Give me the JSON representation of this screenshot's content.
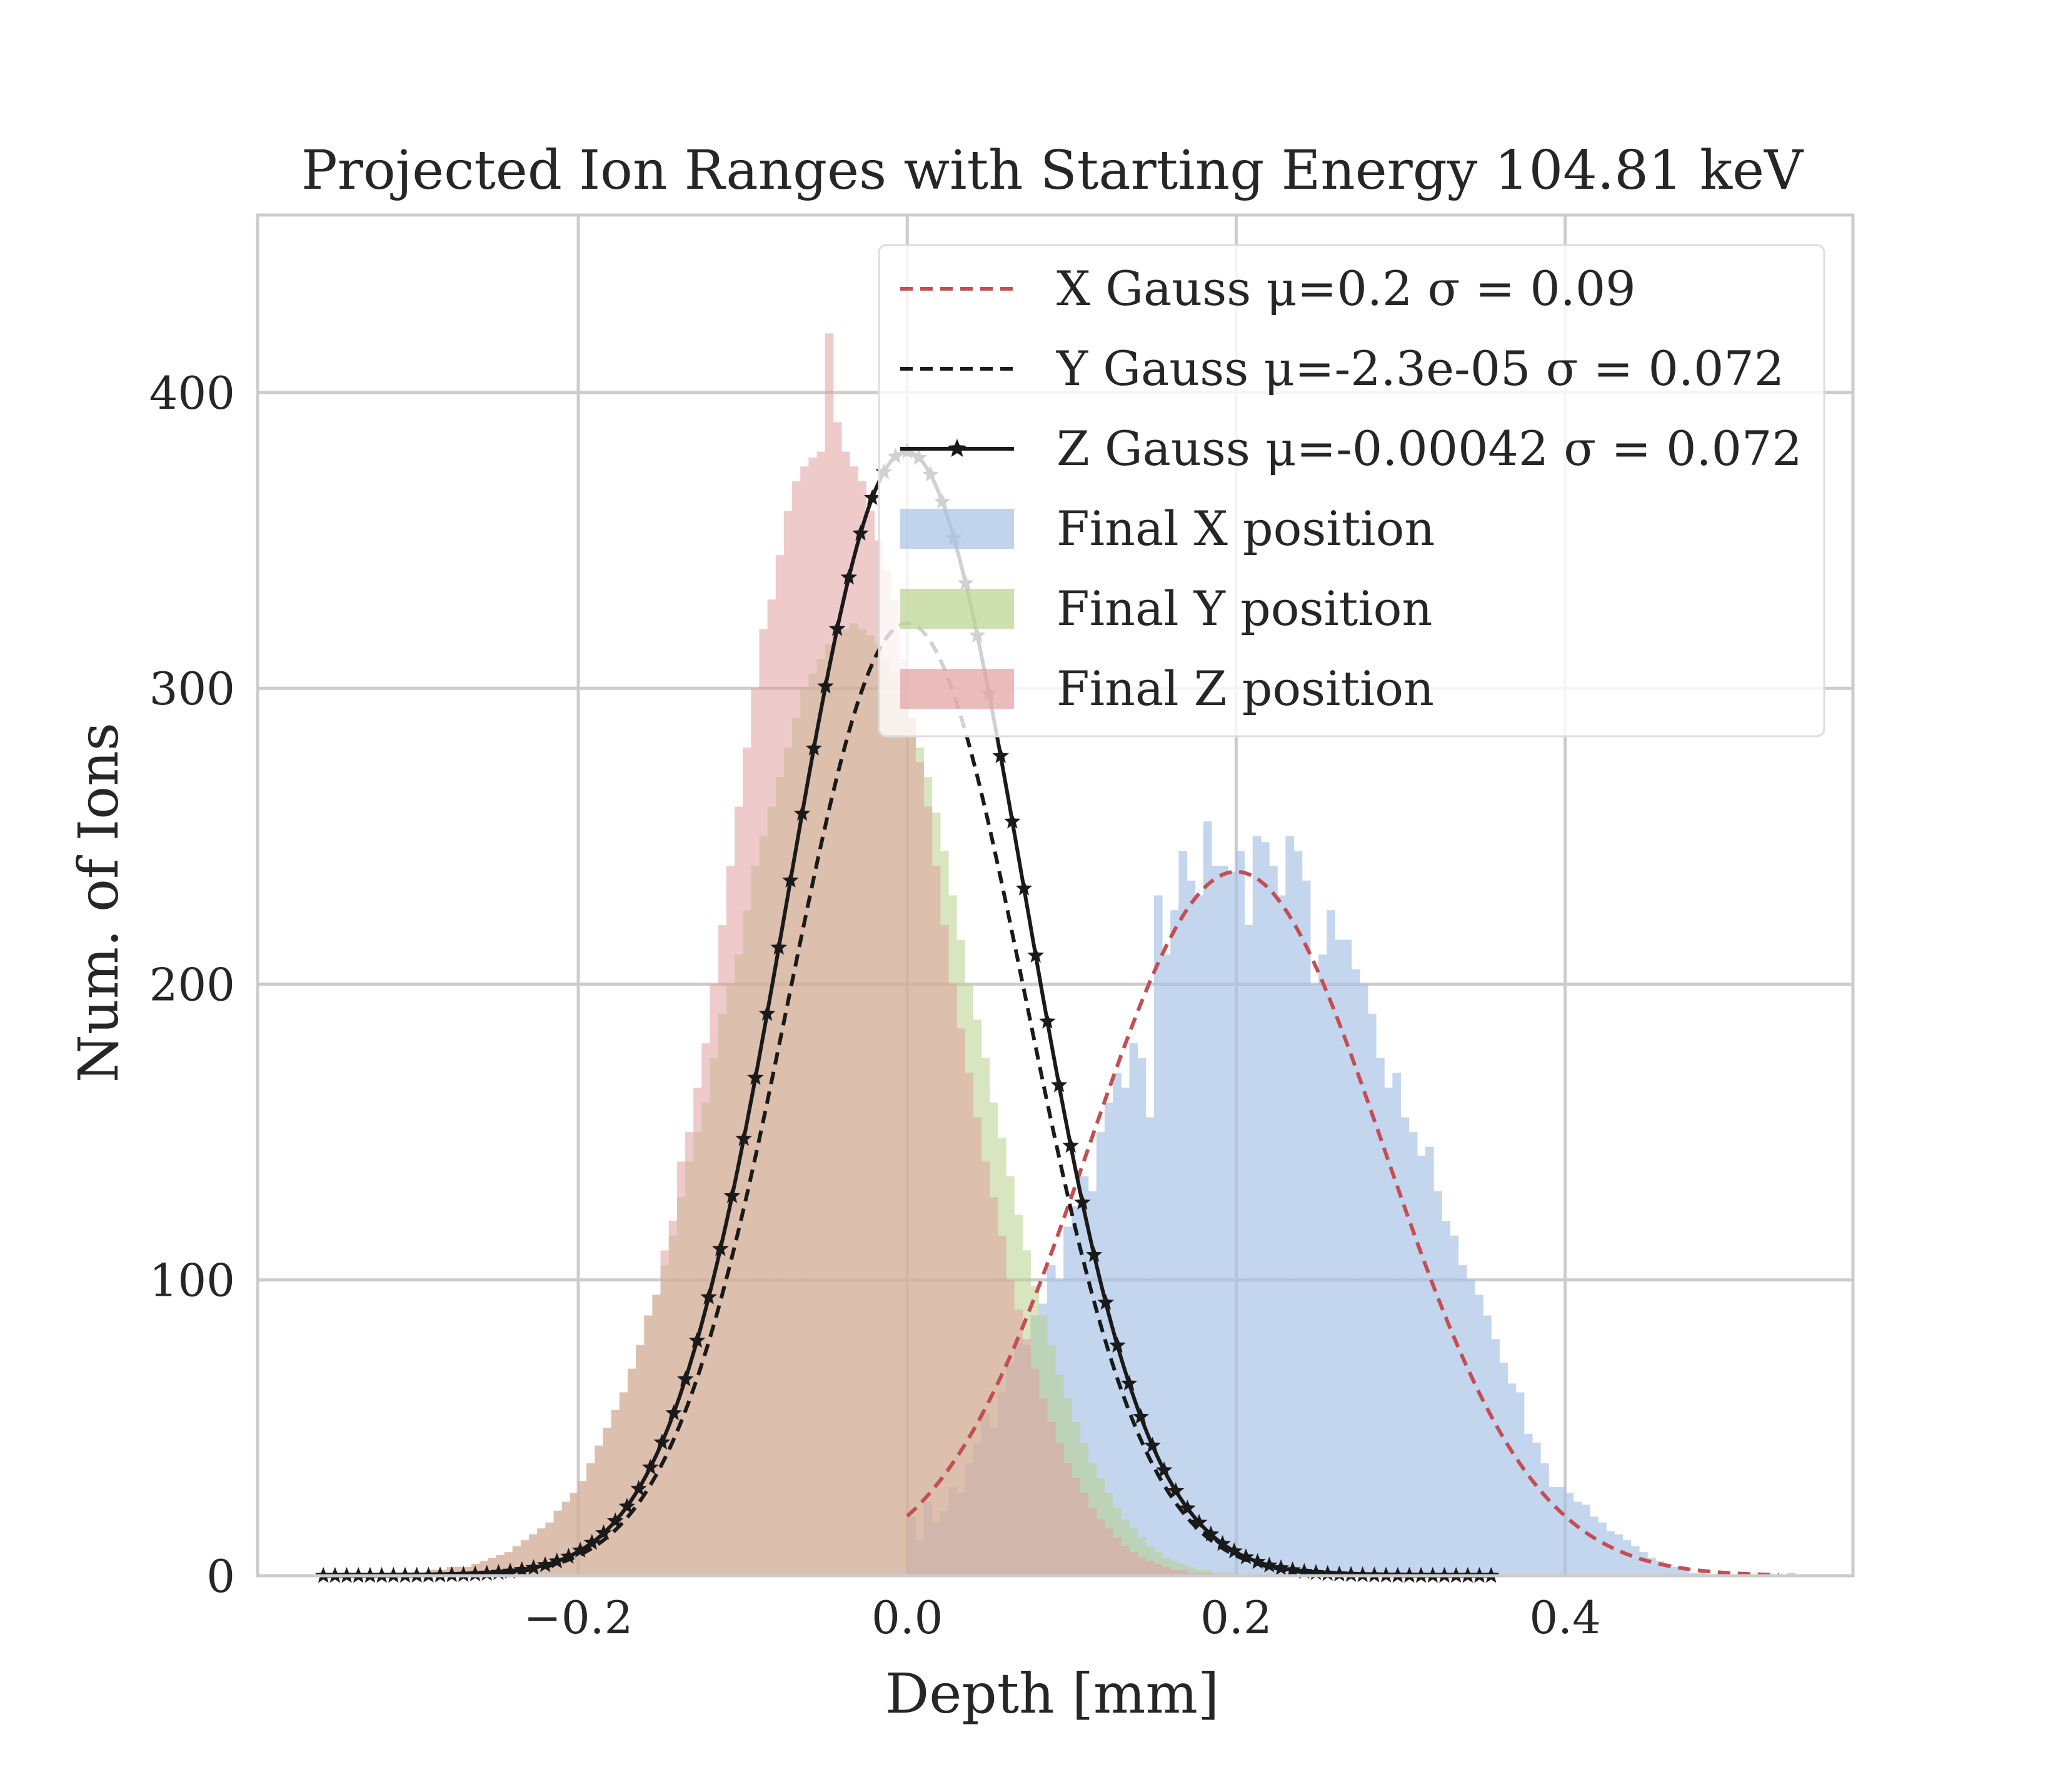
{
  "chart_data": {
    "type": "histogram",
    "title": "Projected Ion Ranges with Starting Energy 104.81 keV",
    "xlabel": "Depth [mm]",
    "ylabel": "Num. of Ions",
    "xlim": [
      -0.395,
      0.575
    ],
    "ylim": [
      0,
      460
    ],
    "x_ticks": [
      -0.2,
      0.0,
      0.2,
      0.4
    ],
    "x_tick_labels": [
      "−0.2",
      "0.0",
      "0.2",
      "0.4"
    ],
    "y_ticks": [
      0,
      100,
      200,
      300,
      400
    ],
    "y_tick_labels": [
      "0",
      "100",
      "200",
      "300",
      "400"
    ],
    "grid": true,
    "legend_position": "top-right",
    "histograms": [
      {
        "name": "Final X position",
        "color": "#a6c0e6",
        "opacity": 0.65,
        "bin_width": 0.005,
        "x_start": 0.0,
        "counts": [
          20,
          12,
          25,
          18,
          22,
          30,
          28,
          38,
          45,
          55,
          50,
          62,
          72,
          80,
          78,
          88,
          92,
          105,
          100,
          118,
          125,
          135,
          130,
          150,
          160,
          170,
          165,
          180,
          175,
          155,
          230,
          210,
          225,
          245,
          235,
          230,
          255,
          240,
          240,
          238,
          245,
          220,
          250,
          248,
          240,
          230,
          250,
          245,
          235,
          200,
          210,
          225,
          215,
          215,
          205,
          200,
          190,
          175,
          165,
          170,
          155,
          150,
          142,
          145,
          130,
          120,
          115,
          105,
          100,
          95,
          88,
          80,
          72,
          65,
          62,
          48,
          45,
          38,
          30,
          30,
          28,
          25,
          24,
          20,
          18,
          15,
          14,
          12,
          10,
          8,
          6,
          5,
          4,
          3,
          2,
          1,
          1,
          0,
          0,
          0,
          0,
          0,
          0,
          0,
          0,
          0,
          0,
          1
        ]
      },
      {
        "name": "Final Y position",
        "color": "#b9d28e",
        "opacity": 0.55,
        "bin_width": 0.005,
        "x_start": -0.36,
        "counts": [
          0,
          0,
          0,
          0,
          0,
          0,
          0,
          0,
          0,
          0,
          1,
          1,
          1,
          1,
          2,
          2,
          3,
          3,
          3,
          4,
          5,
          6,
          7,
          8,
          10,
          12,
          14,
          16,
          18,
          22,
          25,
          28,
          32,
          38,
          44,
          50,
          56,
          62,
          70,
          78,
          88,
          95,
          105,
          115,
          128,
          140,
          150,
          160,
          175,
          190,
          200,
          210,
          225,
          240,
          250,
          260,
          270,
          280,
          290,
          300,
          305,
          310,
          315,
          318,
          320,
          322,
          320,
          318,
          315,
          310,
          305,
          298,
          290,
          280,
          270,
          258,
          245,
          230,
          215,
          200,
          188,
          175,
          160,
          148,
          135,
          122,
          110,
          98,
          88,
          78,
          68,
          60,
          52,
          45,
          38,
          33,
          28,
          23,
          19,
          16,
          13,
          10,
          8,
          6,
          5,
          4,
          3,
          2,
          2,
          1,
          1,
          1,
          0,
          0,
          0,
          0,
          0,
          0,
          0,
          0,
          0,
          0,
          0,
          0,
          0,
          0,
          0,
          0,
          0,
          0,
          0,
          0,
          0,
          0,
          0,
          0,
          0,
          0,
          0,
          0,
          0,
          0
        ]
      },
      {
        "name": "Final Z position",
        "color": "#e2a0a0",
        "opacity": 0.55,
        "bin_width": 0.005,
        "x_start": -0.36,
        "counts": [
          0,
          0,
          0,
          0,
          0,
          0,
          0,
          0,
          0,
          0,
          1,
          1,
          1,
          1,
          2,
          2,
          3,
          3,
          3,
          4,
          5,
          6,
          7,
          8,
          10,
          12,
          14,
          16,
          18,
          22,
          25,
          28,
          32,
          38,
          44,
          50,
          56,
          62,
          70,
          78,
          88,
          95,
          110,
          120,
          140,
          150,
          165,
          180,
          200,
          220,
          240,
          260,
          280,
          300,
          320,
          330,
          345,
          360,
          370,
          375,
          378,
          380,
          420,
          390,
          380,
          375,
          370,
          360,
          350,
          340,
          330,
          310,
          290,
          275,
          260,
          240,
          220,
          200,
          185,
          170,
          155,
          140,
          128,
          115,
          100,
          90,
          80,
          70,
          60,
          52,
          45,
          38,
          33,
          28,
          23,
          19,
          16,
          13,
          10,
          8,
          6,
          5,
          4,
          3,
          2,
          2,
          1,
          1,
          1,
          0,
          0,
          0,
          0,
          0,
          0,
          0,
          0,
          0,
          0,
          0,
          0,
          0,
          0,
          0,
          0,
          0,
          0,
          0,
          0,
          0,
          0,
          0,
          0,
          0,
          0,
          0,
          0,
          0,
          0,
          0,
          0,
          0
        ]
      }
    ],
    "curves": [
      {
        "name": "X Gauss μ=0.2 σ = 0.09",
        "mu": 0.2,
        "sigma": 0.09,
        "amplitude": 238,
        "x_range": [
          0.0,
          0.53
        ],
        "color": "#c44e52",
        "style": "dashed",
        "marker": "none"
      },
      {
        "name": "Y Gauss μ=-2.3e-05 σ = 0.072",
        "mu": -2.3e-05,
        "sigma": 0.072,
        "amplitude": 322,
        "x_range": [
          -0.355,
          0.355
        ],
        "color": "#1a1a1a",
        "style": "dashed",
        "marker": "none"
      },
      {
        "name": "Z Gauss μ=-0.00042 σ = 0.072",
        "mu": -0.00042,
        "sigma": 0.072,
        "amplitude": 380,
        "x_range": [
          -0.355,
          0.355
        ],
        "color": "#1a1a1a",
        "style": "solid",
        "marker": "star",
        "marker_step": 0.0071
      }
    ],
    "legend": [
      {
        "label": "X Gauss μ=0.2 σ = 0.09",
        "kind": "line",
        "color": "#c44e52",
        "style": "dashed",
        "marker": "none"
      },
      {
        "label": "Y Gauss μ=-2.3e-05 σ = 0.072",
        "kind": "line",
        "color": "#1a1a1a",
        "style": "dashed",
        "marker": "none"
      },
      {
        "label": "Z Gauss μ=-0.00042 σ = 0.072",
        "kind": "line",
        "color": "#1a1a1a",
        "style": "solid",
        "marker": "star"
      },
      {
        "label": "Final X position",
        "kind": "patch",
        "color": "#a6c0e6"
      },
      {
        "label": "Final Y position",
        "kind": "patch",
        "color": "#b9d28e"
      },
      {
        "label": "Final Z position",
        "kind": "patch",
        "color": "#e2a0a0"
      }
    ]
  }
}
